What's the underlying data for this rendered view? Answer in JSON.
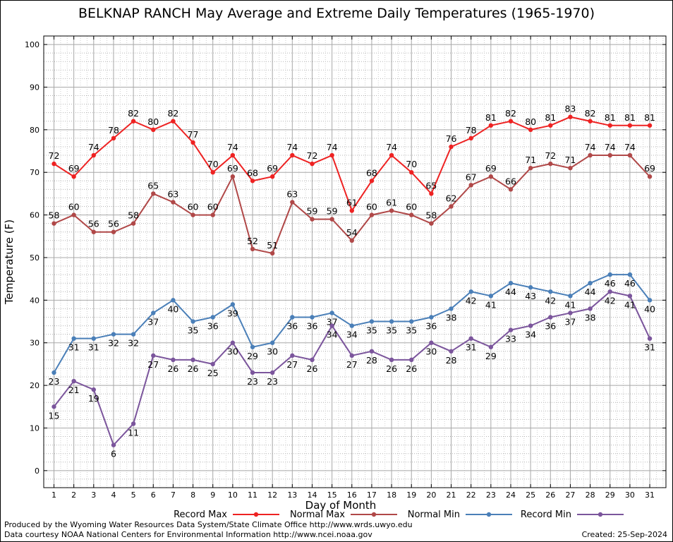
{
  "chart_data": {
    "type": "line",
    "title": "BELKNAP RANCH May Average and Extreme Daily Temperatures (1965-1970)",
    "xlabel": "Day of Month",
    "ylabel": "Temperature (F)",
    "x": [
      1,
      2,
      3,
      4,
      5,
      6,
      7,
      8,
      9,
      10,
      11,
      12,
      13,
      14,
      15,
      16,
      17,
      18,
      19,
      20,
      21,
      22,
      23,
      24,
      25,
      26,
      27,
      28,
      29,
      30,
      31
    ],
    "ylim": [
      -4,
      102
    ],
    "yticks": [
      0,
      10,
      20,
      30,
      40,
      50,
      60,
      70,
      80,
      90,
      100
    ],
    "grid": true,
    "legend_position": "bottom",
    "series": [
      {
        "name": "Record Max",
        "color": "#ee2222",
        "label_pos": "above",
        "values": [
          72,
          69,
          74,
          78,
          82,
          80,
          82,
          77,
          70,
          74,
          68,
          69,
          74,
          72,
          74,
          61,
          68,
          74,
          70,
          65,
          76,
          78,
          81,
          82,
          80,
          81,
          83,
          82,
          81,
          81,
          81
        ]
      },
      {
        "name": "Normal Max",
        "color": "#b04848",
        "label_pos": "above",
        "values": [
          58,
          60,
          56,
          56,
          58,
          65,
          63,
          60,
          60,
          69,
          52,
          51,
          63,
          59,
          59,
          54,
          60,
          61,
          60,
          58,
          62,
          67,
          69,
          66,
          71,
          72,
          71,
          74,
          74,
          74,
          69
        ]
      },
      {
        "name": "Normal Min",
        "color": "#4a7fb8",
        "label_pos": "below",
        "values": [
          23,
          31,
          31,
          32,
          32,
          37,
          40,
          35,
          36,
          39,
          29,
          30,
          36,
          36,
          37,
          34,
          35,
          35,
          35,
          36,
          38,
          42,
          41,
          44,
          43,
          42,
          41,
          44,
          46,
          46,
          40
        ]
      },
      {
        "name": "Record Min",
        "color": "#7b559c",
        "label_pos": "below",
        "values": [
          15,
          21,
          19,
          6,
          11,
          27,
          26,
          26,
          25,
          30,
          23,
          23,
          27,
          26,
          34,
          27,
          28,
          26,
          26,
          30,
          28,
          31,
          29,
          33,
          34,
          36,
          37,
          38,
          42,
          41,
          31
        ]
      }
    ]
  },
  "footer": {
    "line1": "Produced by the Wyoming Water Resources Data System/State Climate Office http://www.wrds.uwyo.edu",
    "line2": "Data courtesy NOAA National Centers for Environmental Information http://www.ncei.noaa.gov",
    "created": "Created: 25-Sep-2024"
  }
}
